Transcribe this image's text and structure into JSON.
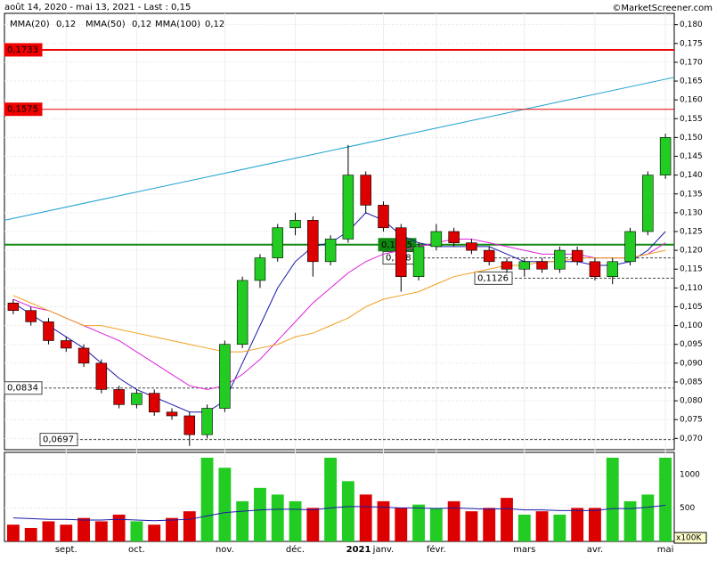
{
  "chart_data": {
    "type": "candlestick",
    "title": "août 14, 2020 - mai 13, 2021 - Last : 0,15",
    "source": "©MarketScreener.com",
    "categories": [
      null,
      null,
      null,
      "sept.",
      null,
      null,
      null,
      "oct.",
      null,
      null,
      null,
      null,
      "nov.",
      null,
      null,
      null,
      "déc.",
      null,
      null,
      null,
      null,
      "janv.",
      null,
      null,
      "févr.",
      null,
      null,
      null,
      null,
      "mars",
      null,
      null,
      null,
      "avr.",
      null,
      null,
      null,
      "mai"
    ],
    "year_label": "2021",
    "open": [
      0.106,
      0.104,
      0.101,
      0.096,
      0.094,
      0.09,
      0.083,
      0.079,
      0.082,
      0.077,
      0.076,
      0.071,
      0.078,
      0.095,
      0.112,
      0.118,
      0.126,
      0.128,
      0.117,
      0.123,
      0.14,
      0.132,
      0.126,
      0.113,
      0.121,
      0.125,
      0.122,
      0.12,
      0.117,
      0.115,
      0.117,
      0.115,
      0.12,
      0.117,
      0.113,
      0.117,
      0.125,
      0.14
    ],
    "high": [
      0.107,
      0.105,
      0.102,
      0.097,
      0.095,
      0.091,
      0.084,
      0.083,
      0.083,
      0.078,
      0.077,
      0.079,
      0.096,
      0.113,
      0.119,
      0.127,
      0.13,
      0.129,
      0.124,
      0.148,
      0.141,
      0.133,
      0.127,
      0.122,
      0.127,
      0.126,
      0.123,
      0.121,
      0.118,
      0.118,
      0.118,
      0.121,
      0.121,
      0.118,
      0.118,
      0.126,
      0.141,
      0.151
    ],
    "low": [
      0.103,
      0.1,
      0.095,
      0.093,
      0.089,
      0.082,
      0.078,
      0.078,
      0.076,
      0.075,
      0.068,
      0.07,
      0.077,
      0.094,
      0.11,
      0.117,
      0.124,
      0.113,
      0.116,
      0.122,
      0.13,
      0.125,
      0.109,
      0.112,
      0.12,
      0.121,
      0.119,
      0.116,
      0.114,
      0.113,
      0.114,
      0.114,
      0.116,
      0.112,
      0.111,
      0.116,
      0.124,
      0.139
    ],
    "close": [
      0.104,
      0.101,
      0.096,
      0.094,
      0.09,
      0.083,
      0.079,
      0.082,
      0.077,
      0.076,
      0.071,
      0.078,
      0.095,
      0.112,
      0.118,
      0.126,
      0.128,
      0.117,
      0.123,
      0.14,
      0.132,
      0.126,
      0.113,
      0.121,
      0.125,
      0.122,
      0.12,
      0.117,
      0.115,
      0.117,
      0.115,
      0.12,
      0.117,
      0.113,
      0.117,
      0.125,
      0.14,
      0.15
    ],
    "up_color": "#22cc22",
    "down_color": "#dd0000",
    "series": [
      {
        "name": "MMA(20)",
        "last": "0,12",
        "color": "#1a1aa8",
        "values": [
          0.106,
          0.103,
          0.1,
          0.097,
          0.094,
          0.09,
          0.086,
          0.083,
          0.081,
          0.079,
          0.077,
          0.077,
          0.08,
          0.09,
          0.1,
          0.11,
          0.117,
          0.121,
          0.122,
          0.125,
          0.13,
          0.128,
          0.124,
          0.122,
          0.121,
          0.121,
          0.121,
          0.121,
          0.119,
          0.117,
          0.117,
          0.117,
          0.117,
          0.116,
          0.116,
          0.117,
          0.12,
          0.125
        ]
      },
      {
        "name": "MMA(50)",
        "last": "0,12",
        "color": "#dd22dd",
        "values": [
          0.107,
          0.105,
          0.104,
          0.102,
          0.1,
          0.098,
          0.096,
          0.093,
          0.09,
          0.087,
          0.084,
          0.083,
          0.084,
          0.087,
          0.091,
          0.096,
          0.101,
          0.106,
          0.11,
          0.114,
          0.117,
          0.119,
          0.12,
          0.121,
          0.122,
          0.123,
          0.123,
          0.122,
          0.121,
          0.12,
          0.119,
          0.119,
          0.119,
          0.118,
          0.118,
          0.118,
          0.119,
          0.122
        ]
      },
      {
        "name": "MMA(100)",
        "last": "0,12",
        "color": "#f0a020",
        "values": [
          0.108,
          0.106,
          0.104,
          0.102,
          0.1,
          0.1,
          0.099,
          0.098,
          0.097,
          0.096,
          0.095,
          0.094,
          0.093,
          0.093,
          0.094,
          0.095,
          0.097,
          0.098,
          0.1,
          0.102,
          0.105,
          0.107,
          0.108,
          0.109,
          0.111,
          0.113,
          0.114,
          0.115,
          0.116,
          0.116,
          0.117,
          0.117,
          0.118,
          0.118,
          0.118,
          0.118,
          0.119,
          0.12
        ]
      }
    ],
    "trendline": {
      "color": "#1aa0d0",
      "values": [
        0.128,
        0.166
      ]
    },
    "levels": [
      {
        "value": 0.1733,
        "label": "0,1733",
        "color": "#ee0000",
        "style": "solid-thick"
      },
      {
        "value": 0.1575,
        "label": "0,1575",
        "color": "#ee0000",
        "style": "solid"
      },
      {
        "value": 0.0834,
        "label": "0,0834",
        "color": "#444444",
        "style": "dashed"
      },
      {
        "value": 0.0697,
        "label": "0,0697",
        "color": "#444444",
        "style": "dashed"
      },
      {
        "value": 0.1215,
        "label": "0,1215",
        "color": "#118811",
        "style": "solid-thick"
      },
      {
        "value": 0.118,
        "label": "0,118",
        "color": "#444444",
        "style": "dashed"
      },
      {
        "value": 0.1126,
        "label": "0,1126",
        "color": "#444444",
        "style": "dashed"
      }
    ],
    "ylim": [
      0.067,
      0.183
    ],
    "yticks": [
      {
        "value": 0.07,
        "label": "0,070"
      },
      {
        "value": 0.075,
        "label": "0,075"
      },
      {
        "value": 0.08,
        "label": "0,080"
      },
      {
        "value": 0.085,
        "label": "0,085"
      },
      {
        "value": 0.09,
        "label": "0,090"
      },
      {
        "value": 0.095,
        "label": "0,095"
      },
      {
        "value": 0.1,
        "label": "0,100"
      },
      {
        "value": 0.105,
        "label": "0,105"
      },
      {
        "value": 0.11,
        "label": "0,110"
      },
      {
        "value": 0.115,
        "label": "0,115"
      },
      {
        "value": 0.12,
        "label": "0,120"
      },
      {
        "value": 0.125,
        "label": "0,125"
      },
      {
        "value": 0.13,
        "label": "0,130"
      },
      {
        "value": 0.135,
        "label": "0,135"
      },
      {
        "value": 0.14,
        "label": "0,140"
      },
      {
        "value": 0.145,
        "label": "0,145"
      },
      {
        "value": 0.15,
        "label": "0,150"
      },
      {
        "value": 0.155,
        "label": "0,155"
      },
      {
        "value": 0.16,
        "label": "0,160"
      },
      {
        "value": 0.165,
        "label": "0,165"
      },
      {
        "value": 0.17,
        "label": "0,170"
      },
      {
        "value": 0.175,
        "label": "0,175"
      },
      {
        "value": 0.18,
        "label": "0,180"
      }
    ],
    "volume": {
      "unit": "x100K",
      "values": [
        250,
        200,
        300,
        250,
        350,
        300,
        400,
        300,
        250,
        350,
        450,
        1250,
        1100,
        600,
        800,
        700,
        600,
        500,
        1250,
        900,
        700,
        600,
        500,
        550,
        500,
        600,
        450,
        500,
        650,
        400,
        450,
        400,
        500,
        500,
        1250,
        600,
        700,
        1250
      ],
      "average": {
        "color": "#1a1aa8",
        "values": [
          350,
          340,
          330,
          330,
          320,
          320,
          330,
          320,
          310,
          320,
          330,
          380,
          430,
          450,
          470,
          480,
          480,
          470,
          500,
          520,
          520,
          510,
          500,
          500,
          490,
          500,
          490,
          480,
          490,
          470,
          470,
          460,
          460,
          460,
          490,
          490,
          510,
          540
        ]
      },
      "ylim": [
        0,
        1330
      ],
      "yticks": [
        500,
        1000
      ]
    },
    "grid": true
  }
}
